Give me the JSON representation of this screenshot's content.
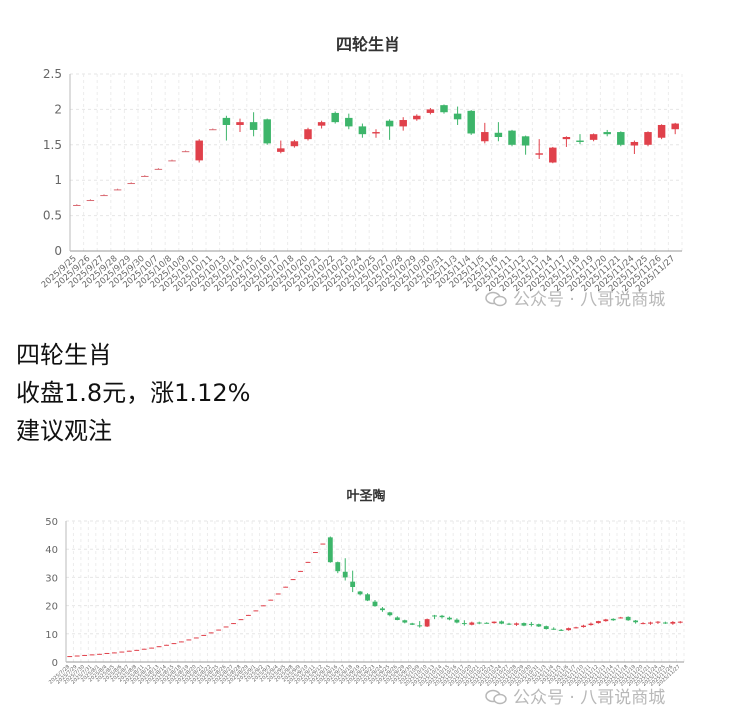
{
  "chart_data": [
    {
      "type": "candlestick",
      "title": "四轮生肖",
      "ylim": [
        0,
        2.5
      ],
      "yticks": [
        "0",
        "0.5",
        "1",
        "1.5",
        "2",
        "2.5"
      ],
      "grid": true,
      "colors": {
        "up": "#e0414b",
        "down": "#3db56a",
        "flat": "#d96a72"
      },
      "categories": [
        "2025/9/25",
        "2025/9/26",
        "2025/9/27",
        "2025/9/28",
        "2025/9/29",
        "2025/9/30",
        "2025/10/7",
        "2025/10/8",
        "2025/10/9",
        "2025/10/10",
        "2025/10/11",
        "2025/10/13",
        "2025/10/14",
        "2025/10/15",
        "2025/10/16",
        "2025/10/17",
        "2025/10/18",
        "2025/10/20",
        "2025/10/21",
        "2025/10/22",
        "2025/10/23",
        "2025/10/24",
        "2025/10/25",
        "2025/10/27",
        "2025/10/28",
        "2025/10/29",
        "2025/10/30",
        "2025/10/31",
        "2025/11/3",
        "2025/11/4",
        "2025/11/5",
        "2025/11/6",
        "2025/11/11",
        "2025/11/12",
        "2025/11/13",
        "2025/11/14",
        "2025/11/17",
        "2025/11/18",
        "2025/11/19",
        "2025/11/20",
        "2025/11/21",
        "2025/11/24",
        "2025/11/25",
        "2025/11/26",
        "2025/11/27"
      ],
      "ohlc": [
        [
          0.65,
          0.65,
          0.64,
          0.66
        ],
        [
          0.72,
          0.72,
          0.71,
          0.73
        ],
        [
          0.79,
          0.79,
          0.78,
          0.8
        ],
        [
          0.87,
          0.87,
          0.86,
          0.88
        ],
        [
          0.96,
          0.96,
          0.95,
          0.97
        ],
        [
          1.06,
          1.06,
          1.05,
          1.07
        ],
        [
          1.16,
          1.16,
          1.15,
          1.17
        ],
        [
          1.28,
          1.28,
          1.27,
          1.29
        ],
        [
          1.41,
          1.41,
          1.4,
          1.42
        ],
        [
          1.28,
          1.56,
          1.25,
          1.58
        ],
        [
          1.72,
          1.72,
          1.71,
          1.73
        ],
        [
          1.88,
          1.78,
          1.56,
          1.91
        ],
        [
          1.78,
          1.82,
          1.68,
          1.87
        ],
        [
          1.82,
          1.71,
          1.62,
          1.96
        ],
        [
          1.86,
          1.52,
          1.5,
          1.87
        ],
        [
          1.4,
          1.45,
          1.38,
          1.56
        ],
        [
          1.48,
          1.55,
          1.46,
          1.57
        ],
        [
          1.58,
          1.72,
          1.56,
          1.74
        ],
        [
          1.77,
          1.82,
          1.73,
          1.84
        ],
        [
          1.95,
          1.82,
          1.8,
          1.97
        ],
        [
          1.88,
          1.76,
          1.72,
          1.94
        ],
        [
          1.76,
          1.65,
          1.6,
          1.8
        ],
        [
          1.66,
          1.68,
          1.6,
          1.72
        ],
        [
          1.84,
          1.76,
          1.57,
          1.86
        ],
        [
          1.76,
          1.85,
          1.7,
          1.89
        ],
        [
          1.86,
          1.91,
          1.84,
          1.93
        ],
        [
          1.95,
          2.0,
          1.93,
          2.02
        ],
        [
          2.06,
          1.96,
          1.94,
          2.07
        ],
        [
          1.94,
          1.86,
          1.78,
          2.04
        ],
        [
          1.98,
          1.66,
          1.64,
          1.99
        ],
        [
          1.55,
          1.68,
          1.52,
          1.81
        ],
        [
          1.67,
          1.61,
          1.55,
          1.82
        ],
        [
          1.7,
          1.5,
          1.48,
          1.71
        ],
        [
          1.62,
          1.49,
          1.36,
          1.63
        ],
        [
          1.36,
          1.38,
          1.3,
          1.58
        ],
        [
          1.25,
          1.46,
          1.24,
          1.47
        ],
        [
          1.58,
          1.61,
          1.47,
          1.62
        ],
        [
          1.56,
          1.54,
          1.51,
          1.65
        ],
        [
          1.57,
          1.65,
          1.55,
          1.66
        ],
        [
          1.68,
          1.65,
          1.62,
          1.71
        ],
        [
          1.68,
          1.5,
          1.48,
          1.69
        ],
        [
          1.49,
          1.54,
          1.37,
          1.56
        ],
        [
          1.5,
          1.68,
          1.48,
          1.69
        ],
        [
          1.6,
          1.78,
          1.58,
          1.79
        ],
        [
          1.72,
          1.8,
          1.65,
          1.81
        ]
      ]
    },
    {
      "type": "candlestick",
      "title": "叶圣陶",
      "ylim": [
        0,
        50
      ],
      "yticks": [
        "0",
        "10",
        "20",
        "30",
        "40",
        "50"
      ],
      "grid": true,
      "colors": {
        "up": "#e0414b",
        "down": "#3db56a",
        "flat": "#c98a8f"
      },
      "categories": [
        "2025/7/28",
        "2025/7/29",
        "2025/7/30",
        "2025/7/31",
        "2025/8/1",
        "2025/8/4",
        "2025/8/5",
        "2025/8/6",
        "2025/8/7",
        "2025/8/8",
        "2025/8/11",
        "2025/8/12",
        "2025/8/13",
        "2025/8/14",
        "2025/8/15",
        "2025/8/18",
        "2025/8/19",
        "2025/8/20",
        "2025/8/21",
        "2025/8/22",
        "2025/8/25",
        "2025/8/26",
        "2025/8/27",
        "2025/8/28",
        "2025/8/29",
        "2025/9/1",
        "2025/9/2",
        "2025/9/3",
        "2025/9/4",
        "2025/9/5",
        "2025/9/8",
        "2025/9/9",
        "2025/9/10",
        "2025/9/11",
        "2025/9/12",
        "2025/9/15",
        "2025/9/16",
        "2025/9/17",
        "2025/9/18",
        "2025/9/19",
        "2025/9/22",
        "2025/9/23",
        "2025/9/24",
        "2025/9/25",
        "2025/9/26",
        "2025/9/29",
        "2025/9/30",
        "2025/10/9",
        "2025/10/10",
        "2025/10/13",
        "2025/10/14",
        "2025/10/15",
        "2025/10/16",
        "2025/10/17",
        "2025/10/20",
        "2025/10/21",
        "2025/10/22",
        "2025/10/23",
        "2025/10/24",
        "2025/10/27",
        "2025/10/28",
        "2025/10/29",
        "2025/10/30",
        "2025/10/31",
        "2025/11/3",
        "2025/11/4",
        "2025/11/5",
        "2025/11/6",
        "2025/11/7",
        "2025/11/10",
        "2025/11/11",
        "2025/11/12",
        "2025/11/13",
        "2025/11/14",
        "2025/11/17",
        "2025/11/18",
        "2025/11/19",
        "2025/11/20",
        "2025/11/21",
        "2025/11/24",
        "2025/11/25",
        "2025/11/26",
        "2025/11/27"
      ],
      "ohlc": [
        [
          2.0,
          2.1,
          2.0,
          2.1
        ],
        [
          2.2,
          2.3,
          2.2,
          2.3
        ],
        [
          2.4,
          2.5,
          2.4,
          2.5
        ],
        [
          2.6,
          2.7,
          2.6,
          2.7
        ],
        [
          2.8,
          2.9,
          2.8,
          2.9
        ],
        [
          3.1,
          3.2,
          3.1,
          3.2
        ],
        [
          3.3,
          3.4,
          3.3,
          3.4
        ],
        [
          3.6,
          3.7,
          3.6,
          3.7
        ],
        [
          3.9,
          4.0,
          3.9,
          4.0
        ],
        [
          4.2,
          4.3,
          4.2,
          4.3
        ],
        [
          4.6,
          4.7,
          4.6,
          4.7
        ],
        [
          5.0,
          5.1,
          5.0,
          5.1
        ],
        [
          5.5,
          5.6,
          5.5,
          5.6
        ],
        [
          6.0,
          6.1,
          6.0,
          6.1
        ],
        [
          6.6,
          6.7,
          6.6,
          6.7
        ],
        [
          7.2,
          7.3,
          7.2,
          7.3
        ],
        [
          7.9,
          8.0,
          7.9,
          8.0
        ],
        [
          8.6,
          8.7,
          8.6,
          8.7
        ],
        [
          9.5,
          9.6,
          9.5,
          9.6
        ],
        [
          10.4,
          10.5,
          10.4,
          10.5
        ],
        [
          11.4,
          11.5,
          11.4,
          11.5
        ],
        [
          12.5,
          12.6,
          12.5,
          12.6
        ],
        [
          13.7,
          13.8,
          13.7,
          13.8
        ],
        [
          15.1,
          15.2,
          15.1,
          15.2
        ],
        [
          16.6,
          16.7,
          16.6,
          16.7
        ],
        [
          18.2,
          18.3,
          18.2,
          18.3
        ],
        [
          20.0,
          20.1,
          20.0,
          20.1
        ],
        [
          22.0,
          22.1,
          22.0,
          22.1
        ],
        [
          24.2,
          24.3,
          24.2,
          24.3
        ],
        [
          26.6,
          26.7,
          26.6,
          26.7
        ],
        [
          29.3,
          29.4,
          29.3,
          29.4
        ],
        [
          32.2,
          32.3,
          32.2,
          32.3
        ],
        [
          35.4,
          35.5,
          35.4,
          35.5
        ],
        [
          38.9,
          39.0,
          38.9,
          39.0
        ],
        [
          41.9,
          42.0,
          41.9,
          42.0
        ],
        [
          44.2,
          35.4,
          35.2,
          44.5
        ],
        [
          35.4,
          32.2,
          31.5,
          35.6
        ],
        [
          32.0,
          30.0,
          28.9,
          36.8
        ],
        [
          28.5,
          26.6,
          24.8,
          32.4
        ],
        [
          25.0,
          24.0,
          23.6,
          25.2
        ],
        [
          24.0,
          21.8,
          21.6,
          24.4
        ],
        [
          21.4,
          19.8,
          19.6,
          22.0
        ],
        [
          19.0,
          18.4,
          17.8,
          19.5
        ],
        [
          17.6,
          16.6,
          16.2,
          17.8
        ],
        [
          15.8,
          14.9,
          14.8,
          16.2
        ],
        [
          14.8,
          14.0,
          13.7,
          15.0
        ],
        [
          13.7,
          13.2,
          13.1,
          13.9
        ],
        [
          13.0,
          12.8,
          12.2,
          14.5
        ],
        [
          12.6,
          15.2,
          12.4,
          15.4
        ],
        [
          16.5,
          16.4,
          15.2,
          16.7
        ],
        [
          16.4,
          15.9,
          15.4,
          16.7
        ],
        [
          15.7,
          15.1,
          14.8,
          16.1
        ],
        [
          15.0,
          14.0,
          13.7,
          15.5
        ],
        [
          13.8,
          13.5,
          12.9,
          14.8
        ],
        [
          13.2,
          14.0,
          13.0,
          14.3
        ],
        [
          14.0,
          13.9,
          13.4,
          14.3
        ],
        [
          13.9,
          13.7,
          13.6,
          14.1
        ],
        [
          13.8,
          14.3,
          13.6,
          14.4
        ],
        [
          14.4,
          13.6,
          13.4,
          14.7
        ],
        [
          13.6,
          13.3,
          13.1,
          13.9
        ],
        [
          13.2,
          13.7,
          12.8,
          14.0
        ],
        [
          13.8,
          12.9,
          12.7,
          14.0
        ],
        [
          13.5,
          13.4,
          12.6,
          14.2
        ],
        [
          13.4,
          12.6,
          12.4,
          13.6
        ],
        [
          12.7,
          11.7,
          11.5,
          12.9
        ],
        [
          11.8,
          11.6,
          11.4,
          12.3
        ],
        [
          11.4,
          11.2,
          11.0,
          11.7
        ],
        [
          11.3,
          12.0,
          11.1,
          12.2
        ],
        [
          12.1,
          12.3,
          11.9,
          12.5
        ],
        [
          12.4,
          12.9,
          12.2,
          13.2
        ],
        [
          13.1,
          13.6,
          12.9,
          14.0
        ],
        [
          13.8,
          14.5,
          13.6,
          14.6
        ],
        [
          14.5,
          15.1,
          14.3,
          15.3
        ],
        [
          15.3,
          14.8,
          14.6,
          15.5
        ],
        [
          15.6,
          15.8,
          15.4,
          16.0
        ],
        [
          16.0,
          14.8,
          14.6,
          16.2
        ],
        [
          14.7,
          14.1,
          13.6,
          14.9
        ],
        [
          13.6,
          13.8,
          13.4,
          14.1
        ],
        [
          13.6,
          14.0,
          13.2,
          14.3
        ],
        [
          14.0,
          14.3,
          13.5,
          14.5
        ],
        [
          14.0,
          13.7,
          13.5,
          14.3
        ],
        [
          13.6,
          14.2,
          13.2,
          14.5
        ],
        [
          14.0,
          14.3,
          13.7,
          14.5
        ]
      ]
    }
  ],
  "caption": {
    "name": "四轮生肖",
    "close_line": "收盘1.8元，涨1.12%",
    "advice": "建议观注"
  },
  "watermark": "公众号 · 八哥说商城"
}
